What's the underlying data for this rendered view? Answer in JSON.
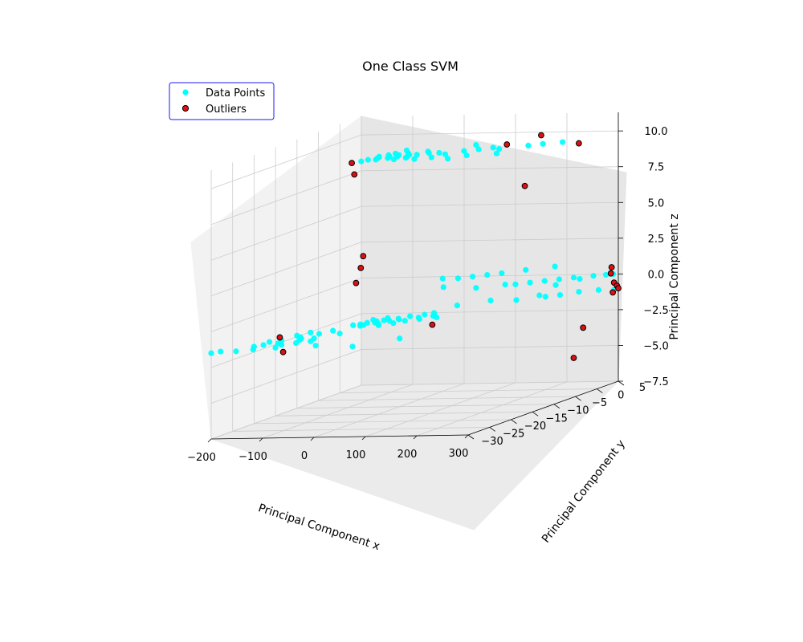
{
  "chart_data": {
    "type": "scatter",
    "projection": "3d",
    "title": "One Class SVM",
    "xlabel": "Principal Component x",
    "ylabel": "Principal Component y",
    "zlabel": "Principal Component z",
    "xlim": [
      -200,
      300
    ],
    "ylim": [
      -30,
      5
    ],
    "zlim": [
      -7.5,
      10
    ],
    "xticks": [
      -200,
      -100,
      0,
      100,
      200,
      300
    ],
    "xtick_labels": [
      "−200",
      "−100",
      "0",
      "100",
      "200",
      "300"
    ],
    "yticks": [
      -30,
      -25,
      -20,
      -15,
      -10,
      -5,
      0,
      5
    ],
    "ytick_labels": [
      "−30",
      "−25",
      "−20",
      "−15",
      "−10",
      "−5",
      "0",
      "5"
    ],
    "zticks": [
      -7.5,
      -5.0,
      -2.5,
      0.0,
      2.5,
      5.0,
      7.5,
      10.0
    ],
    "ztick_labels": [
      "−7.5",
      "−5.0",
      "−2.5",
      "0.0",
      "2.5",
      "5.0",
      "7.5",
      "10.0"
    ],
    "grid": true,
    "legend_position": "upper-left",
    "colors": {
      "inlier": "#00ffff",
      "outlier": "#dd1111",
      "outlier_edge": "#000000",
      "legend_border": "#1a1aff"
    },
    "series": [
      {
        "name": "Data Points",
        "points": [
          [
            -60,
            -12,
            -1.5
          ],
          [
            -40,
            -11,
            -1.5
          ],
          [
            -20,
            -10,
            -1.5
          ],
          [
            -50,
            -12.5,
            -1.5
          ],
          [
            -30,
            -11.5,
            -1.5
          ],
          [
            -10,
            -9,
            -1.5
          ],
          [
            -55,
            -11,
            -1.5
          ],
          [
            -45,
            -10,
            -1.5
          ],
          [
            -25,
            -12,
            -1.5
          ],
          [
            -35,
            -9.5,
            -1.5
          ],
          [
            10,
            -10,
            -1.5
          ],
          [
            0,
            -11.5,
            -1.5
          ],
          [
            -15,
            -8.5,
            -1.5
          ],
          [
            -52,
            -13,
            -1.5
          ],
          [
            -18,
            -12.8,
            -1.5
          ],
          [
            20,
            -8,
            -1.5
          ],
          [
            30,
            -9,
            -1.5
          ],
          [
            40,
            -7,
            -1.5
          ],
          [
            15,
            -6,
            -1.5
          ],
          [
            55,
            -8,
            -1.5
          ],
          [
            25,
            -5,
            -1.5
          ],
          [
            -60,
            -9,
            -1.5
          ],
          [
            -5,
            -7,
            -1.5
          ],
          [
            -40,
            -8,
            -1.5
          ],
          [
            -70,
            -12.5,
            -1.5
          ],
          [
            -90,
            -18,
            -1.5
          ],
          [
            -110,
            -20,
            -1.5
          ],
          [
            -130,
            -22,
            -1.5
          ],
          [
            -100,
            -21,
            -1.5
          ],
          [
            -120,
            -24,
            -1.5
          ],
          [
            -150,
            -26,
            -1.5
          ],
          [
            -80,
            -16,
            -1.5
          ],
          [
            -140,
            -25,
            -1.5
          ],
          [
            -95,
            -22,
            -1.5
          ],
          [
            -115,
            -17,
            -1.5
          ],
          [
            -135,
            -28,
            -1.5
          ],
          [
            -160,
            -29,
            -1.5
          ],
          [
            -105,
            -25,
            -1.5
          ],
          [
            -85,
            -24,
            -1.5
          ],
          [
            -125,
            -19,
            -1.5
          ],
          [
            -75,
            -21,
            -1.5
          ],
          [
            -145,
            -23,
            -1.5
          ],
          [
            -65,
            -23,
            -1.5
          ],
          [
            -100,
            -27,
            -1.5
          ],
          [
            -190,
            -29,
            -1.5
          ],
          [
            -50,
            -18,
            -1.5
          ],
          [
            -30,
            -26,
            -1.5
          ],
          [
            100,
            -22,
            -1.5
          ],
          [
            50,
            -27,
            -1.5
          ],
          [
            -200,
            -30,
            -1.5
          ],
          [
            -40,
            -10,
            10
          ],
          [
            -30,
            -9,
            10
          ],
          [
            -20,
            -10,
            10
          ],
          [
            -35,
            -11,
            10
          ],
          [
            -10,
            -9,
            10
          ],
          [
            0,
            -8,
            10
          ],
          [
            10,
            -9,
            10
          ],
          [
            -25,
            -8,
            10
          ],
          [
            -45,
            -12,
            10
          ],
          [
            15,
            -10,
            10
          ],
          [
            25,
            -9,
            10
          ],
          [
            -15,
            -11,
            10
          ],
          [
            -5,
            -10,
            10
          ],
          [
            40,
            -8,
            10
          ],
          [
            60,
            -8,
            10
          ],
          [
            80,
            -9,
            10
          ],
          [
            100,
            -7,
            10
          ],
          [
            120,
            -6,
            10
          ],
          [
            140,
            -5,
            10
          ],
          [
            160,
            -6,
            10
          ],
          [
            200,
            -4,
            10
          ],
          [
            220,
            -3,
            10
          ],
          [
            250,
            -2,
            10
          ],
          [
            180,
            -9,
            10
          ],
          [
            130,
            -10,
            10
          ],
          [
            -50,
            -13,
            10
          ],
          [
            20,
            -11,
            10
          ],
          [
            30,
            -7,
            10
          ],
          [
            -30,
            -12,
            10
          ],
          [
            5,
            -12,
            10
          ],
          [
            70,
            -11,
            10
          ],
          [
            90,
            -3,
            10
          ],
          [
            110,
            -12,
            10
          ],
          [
            -20,
            -6,
            10
          ],
          [
            45,
            -12,
            10
          ],
          [
            150,
            -1,
            0
          ],
          [
            170,
            0,
            0
          ],
          [
            190,
            1,
            0
          ],
          [
            210,
            2,
            0
          ],
          [
            230,
            3,
            0
          ],
          [
            260,
            4,
            0
          ],
          [
            280,
            4.5,
            0
          ],
          [
            160,
            -2,
            -1
          ],
          [
            180,
            1,
            -1
          ],
          [
            200,
            0,
            -1
          ],
          [
            220,
            1,
            -1
          ],
          [
            240,
            3,
            -1
          ],
          [
            270,
            4,
            -1
          ],
          [
            140,
            -3,
            1
          ],
          [
            120,
            -4,
            1
          ],
          [
            100,
            -5,
            1
          ],
          [
            80,
            -6,
            1
          ],
          [
            60,
            -7,
            0.5
          ],
          [
            170,
            -1,
            1
          ],
          [
            210,
            1,
            1
          ],
          [
            250,
            2,
            0
          ],
          [
            290,
            5,
            0
          ],
          [
            300,
            4,
            -1
          ],
          [
            130,
            -1,
            0
          ],
          [
            110,
            -2,
            -1
          ],
          [
            90,
            -3,
            0
          ],
          [
            70,
            -5,
            -1
          ],
          [
            50,
            -6,
            1
          ],
          [
            195,
            3,
            -0.5
          ]
        ]
      },
      {
        "name": "Outliers",
        "points": [
          [
            -60,
            -14,
            10
          ],
          [
            -55,
            -14,
            9.2
          ],
          [
            150,
            -3,
            10
          ],
          [
            200,
            -1,
            10.4
          ],
          [
            290,
            -3,
            10
          ],
          [
            260,
            -12,
            8
          ],
          [
            -55,
            -12.5,
            2.5
          ],
          [
            -52,
            -12.3,
            3.3
          ],
          [
            -60,
            -13,
            1.5
          ],
          [
            300,
            4,
            -0.5
          ],
          [
            298,
            3.5,
            0.2
          ],
          [
            296,
            4.2,
            -1.2
          ],
          [
            299,
            4.8,
            -0.8
          ],
          [
            297,
            3.8,
            0.6
          ],
          [
            300,
            5,
            -1
          ],
          [
            80,
            -12,
            -1.6
          ],
          [
            -150,
            -20,
            -1.5
          ],
          [
            -60,
            -30,
            -1.5
          ],
          [
            290,
            -2,
            -3
          ],
          [
            280,
            -3,
            -5
          ]
        ]
      }
    ]
  }
}
